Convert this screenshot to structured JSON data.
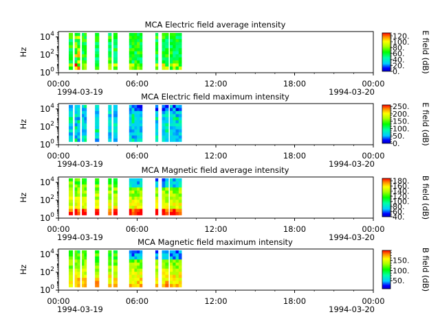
{
  "figure": {
    "x_tick_labels": [
      "00:00",
      "06:00",
      "12:00",
      "18:00",
      "00:00"
    ],
    "date_labels": [
      "1994-03-19",
      "1994-03-20"
    ],
    "y_unit": "Hz"
  },
  "chart_data": [
    {
      "type": "heatmap",
      "title": "MCA  Electric field average intensity",
      "ylabel": "Hz",
      "y_scale": "log",
      "ylim_exponents": [
        0,
        4.6
      ],
      "y_tick_exponents": [
        0,
        2,
        4
      ],
      "x_ticks_hours": [
        0,
        6,
        12,
        18,
        24
      ],
      "data_time_ranges_hours": [
        [
          0.0,
          0.3
        ],
        [
          0.45,
          0.85
        ],
        [
          1.0,
          1.35
        ],
        [
          2.0,
          2.3
        ],
        [
          3.0,
          3.25
        ],
        [
          3.4,
          3.7
        ],
        [
          4.6,
          5.6
        ],
        [
          6.6,
          6.8
        ],
        [
          7.1,
          7.6
        ],
        [
          7.7,
          8.6
        ]
      ],
      "colorbar": {
        "label": "E field (dB)",
        "min": 0,
        "max": 130,
        "tick_labels": [
          "0.",
          "20.",
          "40.",
          "60.",
          "80.",
          "100.",
          "120."
        ],
        "tick_values": [
          0,
          20,
          40,
          60,
          80,
          100,
          120
        ]
      }
    },
    {
      "type": "heatmap",
      "title": "MCA  Electric field maximum intensity",
      "ylabel": "Hz",
      "y_scale": "log",
      "ylim_exponents": [
        0,
        4.6
      ],
      "y_tick_exponents": [
        0,
        2,
        4
      ],
      "x_ticks_hours": [
        0,
        6,
        12,
        18,
        24
      ],
      "data_time_ranges_hours": [
        [
          0.0,
          0.3
        ],
        [
          0.45,
          0.85
        ],
        [
          1.0,
          1.35
        ],
        [
          2.0,
          2.3
        ],
        [
          3.0,
          3.25
        ],
        [
          3.4,
          3.7
        ],
        [
          4.6,
          5.6
        ],
        [
          6.6,
          6.8
        ],
        [
          7.1,
          7.6
        ],
        [
          7.7,
          8.6
        ]
      ],
      "colorbar": {
        "label": "E field (dB)",
        "min": 0,
        "max": 260,
        "tick_labels": [
          "0.",
          "50.",
          "100.",
          "150.",
          "200.",
          "250."
        ],
        "tick_values": [
          0,
          50,
          100,
          150,
          200,
          250
        ]
      }
    },
    {
      "type": "heatmap",
      "title": "MCA  Magnetic field average intensity",
      "ylabel": "Hz",
      "y_scale": "log",
      "ylim_exponents": [
        0,
        4.6
      ],
      "y_tick_exponents": [
        0,
        2,
        4
      ],
      "x_ticks_hours": [
        0,
        6,
        12,
        18,
        24
      ],
      "data_time_ranges_hours": [
        [
          0.0,
          0.3
        ],
        [
          0.45,
          0.85
        ],
        [
          1.0,
          1.35
        ],
        [
          2.0,
          2.3
        ],
        [
          3.0,
          3.25
        ],
        [
          3.4,
          3.7
        ],
        [
          4.6,
          5.6
        ],
        [
          6.6,
          6.8
        ],
        [
          7.1,
          7.6
        ],
        [
          7.7,
          8.6
        ]
      ],
      "colorbar": {
        "label": "B field (dB)",
        "min": 40,
        "max": 190,
        "tick_labels": [
          "40.",
          "60.",
          "80.",
          "100.",
          "120.",
          "140.",
          "160.",
          "180."
        ],
        "tick_values": [
          40,
          60,
          80,
          100,
          120,
          140,
          160,
          180
        ]
      }
    },
    {
      "type": "heatmap",
      "title": "MCA  Magnetic field maximum intensity",
      "ylabel": "Hz",
      "y_scale": "log",
      "ylim_exponents": [
        0,
        4.6
      ],
      "y_tick_exponents": [
        0,
        2,
        4
      ],
      "x_ticks_hours": [
        0,
        6,
        12,
        18,
        24
      ],
      "data_time_ranges_hours": [
        [
          0.0,
          0.3
        ],
        [
          0.45,
          0.85
        ],
        [
          1.0,
          1.35
        ],
        [
          2.0,
          2.3
        ],
        [
          3.0,
          3.25
        ],
        [
          3.4,
          3.7
        ],
        [
          4.6,
          5.6
        ],
        [
          6.6,
          6.8
        ],
        [
          7.1,
          7.6
        ],
        [
          7.7,
          8.6
        ]
      ],
      "colorbar": {
        "label": "B field (dB)",
        "min": 10,
        "max": 200,
        "tick_labels": [
          "50.",
          "100.",
          "150."
        ],
        "tick_values": [
          50,
          100,
          150
        ]
      }
    }
  ]
}
